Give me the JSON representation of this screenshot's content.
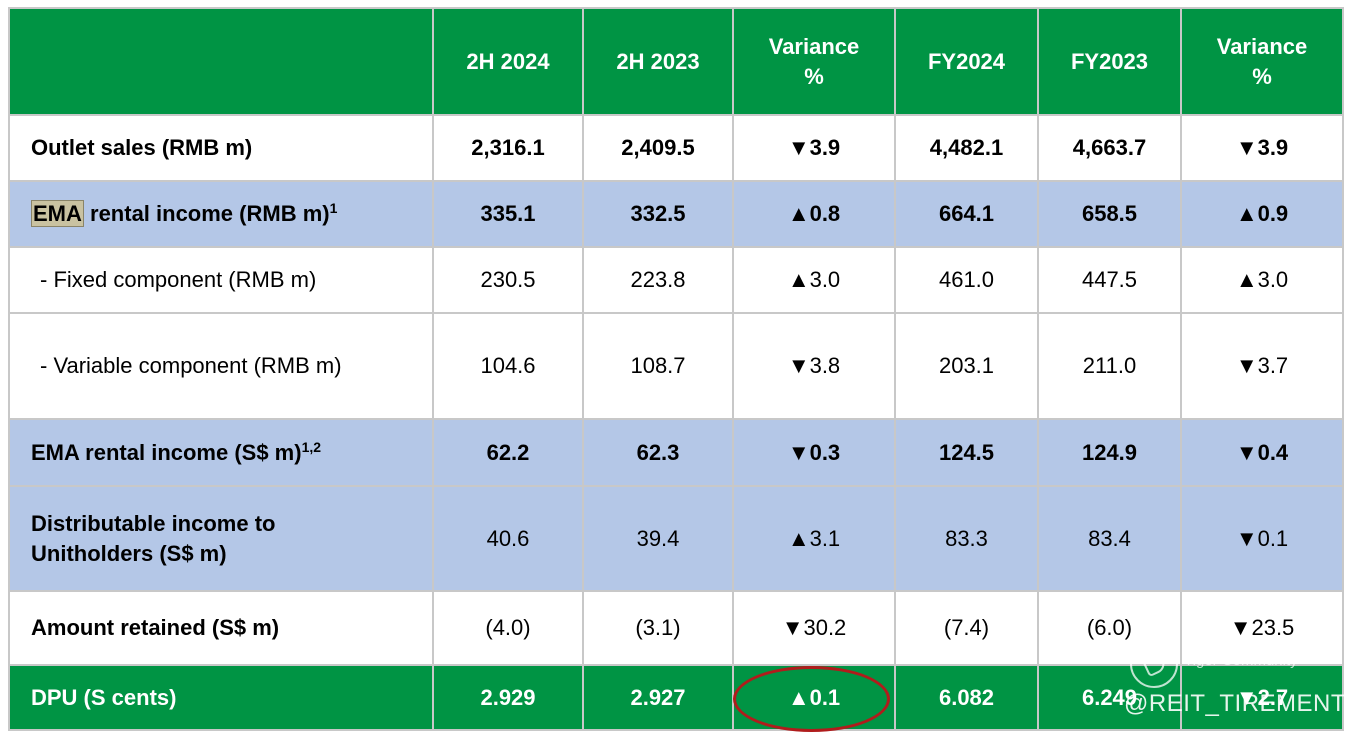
{
  "header": {
    "label": "",
    "cols": [
      "2H 2024",
      "2H 2023",
      "Variance %",
      "FY2024",
      "FY2023",
      "Variance %"
    ]
  },
  "rows": [
    {
      "label": "Outlet sales (RMB m)",
      "sup": "",
      "values": [
        "2,316.1",
        "2,409.5",
        "▼3.9",
        "4,482.1",
        "4,663.7",
        "▼3.9"
      ]
    },
    {
      "label_hl": "EMA",
      "label": " rental income (RMB m)",
      "sup": "1",
      "values": [
        "335.1",
        "332.5",
        "▲0.8",
        "664.1",
        "658.5",
        "▲0.9"
      ]
    },
    {
      "label": "- Fixed component (RMB m)",
      "sup": "",
      "values": [
        "230.5",
        "223.8",
        "▲3.0",
        "461.0",
        "447.5",
        "▲3.0"
      ]
    },
    {
      "label": "- Variable component (RMB m)",
      "sup": "",
      "values": [
        "104.6",
        "108.7",
        "▼3.8",
        "203.1",
        "211.0",
        "▼3.7"
      ]
    },
    {
      "label": "EMA rental income (S$ m)",
      "sup": "1,2",
      "values": [
        "62.2",
        "62.3",
        "▼0.3",
        "124.5",
        "124.9",
        "▼0.4"
      ]
    },
    {
      "label": "Distributable income to Unitholders (S$ m)",
      "sup": "",
      "values": [
        "40.6",
        "39.4",
        "▲3.1",
        "83.3",
        "83.4",
        "▼0.1"
      ]
    },
    {
      "label": "Amount retained (S$ m)",
      "sup": "",
      "values": [
        "(4.0)",
        "(3.1)",
        "▼30.2",
        "(7.4)",
        "(6.0)",
        "▼23.5"
      ]
    },
    {
      "label": "DPU (S cents)",
      "sup": "",
      "values": [
        "2.929",
        "2.927",
        "▲0.1",
        "6.082",
        "6.249",
        "▼2.7"
      ]
    }
  ],
  "watermark": {
    "brand": "Tiger Community",
    "handle": "@REIT_TIREMENT"
  },
  "colors": {
    "header_green": "#009444",
    "row_blue": "#b4c7e7",
    "annotation_red": "#b01c1c"
  }
}
